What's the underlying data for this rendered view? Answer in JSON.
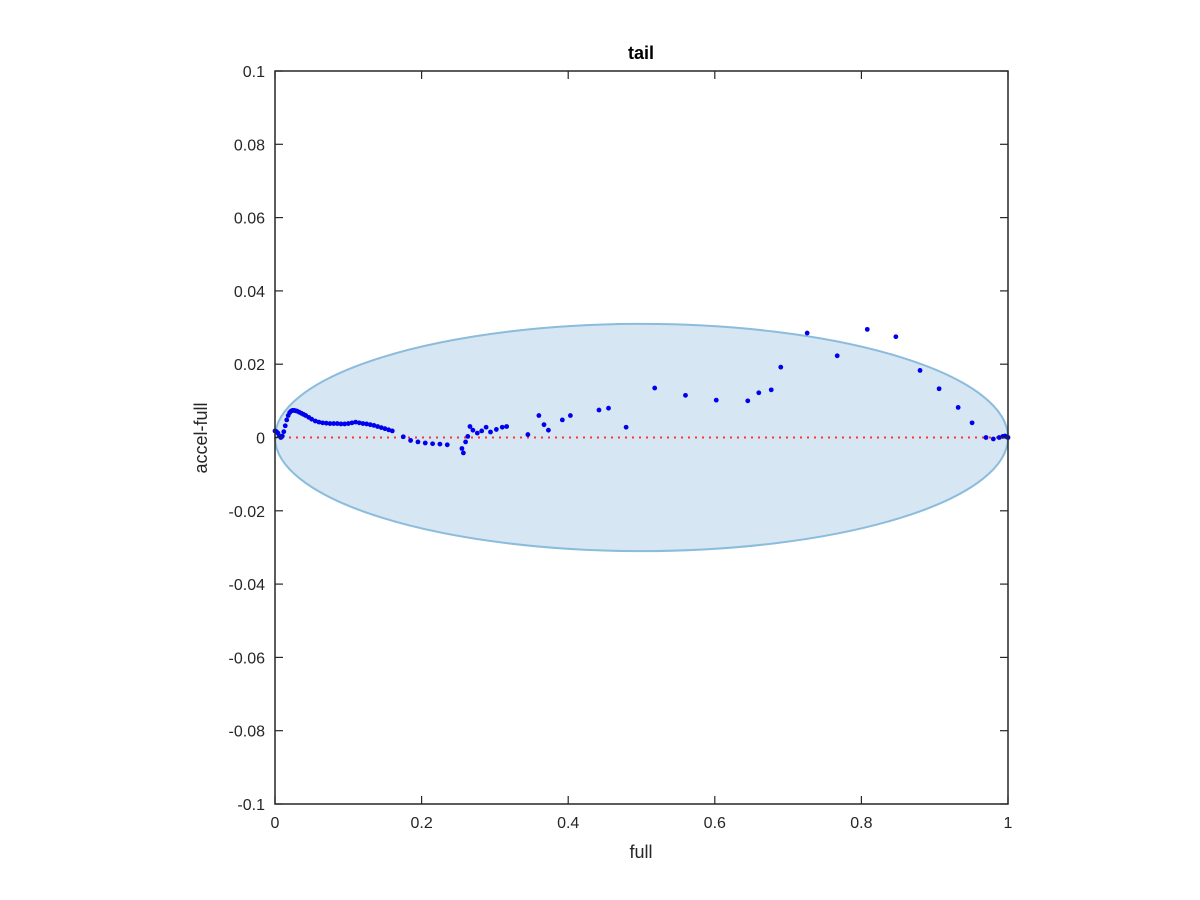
{
  "chart_data": {
    "type": "scatter",
    "title": "tail",
    "xlabel": "full",
    "ylabel": "accel-full",
    "xlim": [
      0,
      1
    ],
    "ylim": [
      -0.1,
      0.1
    ],
    "grid": false,
    "x_ticks": [
      0,
      0.2,
      0.4,
      0.6,
      0.8,
      1
    ],
    "x_tick_labels": [
      "0",
      "0.2",
      "0.4",
      "0.6",
      "0.8",
      "1"
    ],
    "y_ticks": [
      -0.1,
      -0.08,
      -0.06,
      -0.04,
      -0.02,
      0,
      0.02,
      0.04,
      0.06,
      0.08,
      0.1
    ],
    "y_tick_labels": [
      "-0.1",
      "-0.08",
      "-0.06",
      "-0.04",
      "-0.02",
      "0",
      "0.02",
      "0.04",
      "0.06",
      "0.08",
      "0.1"
    ],
    "colors": {
      "points": "#0000ee",
      "ellipse_fill": "#d6e6f3",
      "ellipse_stroke": "#8cbcdc",
      "zero_line": "#ff3333",
      "axes": "#262626"
    },
    "ellipse": {
      "cx": 0.5,
      "cy": 0,
      "rx": 0.5,
      "ry": 0.031
    },
    "reference_line": {
      "y": 0,
      "style": "dotted"
    },
    "series": [
      {
        "x": [
          0.0,
          0.002,
          0.004,
          0.006,
          0.008,
          0.01,
          0.012,
          0.014,
          0.016,
          0.018,
          0.02,
          0.022,
          0.024,
          0.026,
          0.028,
          0.03,
          0.033,
          0.036,
          0.039,
          0.042,
          0.046,
          0.05,
          0.055,
          0.06,
          0.065,
          0.07,
          0.075,
          0.08,
          0.085,
          0.09,
          0.095,
          0.1,
          0.105,
          0.11,
          0.115,
          0.12,
          0.125,
          0.13,
          0.135,
          0.14,
          0.145,
          0.15,
          0.155,
          0.16,
          0.175,
          0.185,
          0.195,
          0.205,
          0.215,
          0.225,
          0.235,
          0.255,
          0.257,
          0.26,
          0.263,
          0.266,
          0.27,
          0.276,
          0.282,
          0.288,
          0.294,
          0.302,
          0.31,
          0.316,
          0.345,
          0.36,
          0.367,
          0.373,
          0.392,
          0.403,
          0.442,
          0.455,
          0.479,
          0.518,
          0.56,
          0.602,
          0.645,
          0.66,
          0.677,
          0.69,
          0.726,
          0.767,
          0.808,
          0.847,
          0.88,
          0.906,
          0.932,
          0.951,
          0.97,
          0.98,
          0.988,
          0.993,
          0.996,
          0.998,
          1.0
        ],
        "y": [
          0.0018,
          0.0016,
          0.0012,
          0.0004,
          0.0,
          0.0004,
          0.0016,
          0.0032,
          0.0048,
          0.006,
          0.0068,
          0.0072,
          0.0074,
          0.0074,
          0.0073,
          0.0072,
          0.0069,
          0.0066,
          0.0063,
          0.006,
          0.0055,
          0.005,
          0.0045,
          0.0042,
          0.004,
          0.0039,
          0.0038,
          0.0038,
          0.0038,
          0.0037,
          0.0037,
          0.0038,
          0.004,
          0.0042,
          0.004,
          0.0038,
          0.0037,
          0.0035,
          0.0033,
          0.003,
          0.0027,
          0.0024,
          0.0021,
          0.0018,
          0.0002,
          -0.0008,
          -0.0012,
          -0.0015,
          -0.0017,
          -0.0018,
          -0.002,
          -0.003,
          -0.0042,
          -0.0012,
          0.0003,
          0.003,
          0.002,
          0.0012,
          0.0018,
          0.0028,
          0.0015,
          0.0022,
          0.0028,
          0.003,
          0.0008,
          0.006,
          0.0035,
          0.002,
          0.0048,
          0.006,
          0.0075,
          0.008,
          0.0028,
          0.0135,
          0.0115,
          0.0102,
          0.01,
          0.0122,
          0.013,
          0.0192,
          0.0285,
          0.0223,
          0.0295,
          0.0275,
          0.0183,
          0.0133,
          0.0082,
          0.004,
          0.0,
          -0.0004,
          0.0,
          0.0003,
          0.0004,
          0.0002,
          0.0
        ]
      }
    ]
  }
}
